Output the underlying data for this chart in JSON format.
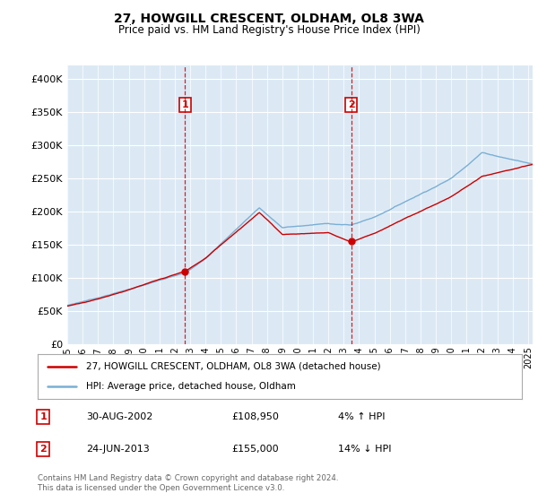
{
  "title": "27, HOWGILL CRESCENT, OLDHAM, OL8 3WA",
  "subtitle": "Price paid vs. HM Land Registry's House Price Index (HPI)",
  "plot_bg_color": "#dce9f5",
  "ylim": [
    0,
    420000
  ],
  "yticks": [
    0,
    50000,
    100000,
    150000,
    200000,
    250000,
    300000,
    350000,
    400000
  ],
  "ytick_labels": [
    "£0",
    "£50K",
    "£100K",
    "£150K",
    "£200K",
    "£250K",
    "£300K",
    "£350K",
    "£400K"
  ],
  "sale1": {
    "date_num": 2002.66,
    "price": 108950,
    "label": "1",
    "date_str": "30-AUG-2002",
    "hpi_pct": "4% ↑ HPI"
  },
  "sale2": {
    "date_num": 2013.48,
    "price": 155000,
    "label": "2",
    "date_str": "24-JUN-2013",
    "hpi_pct": "14% ↓ HPI"
  },
  "legend_red": "27, HOWGILL CRESCENT, OLDHAM, OL8 3WA (detached house)",
  "legend_blue": "HPI: Average price, detached house, Oldham",
  "footer": "Contains HM Land Registry data © Crown copyright and database right 2024.\nThis data is licensed under the Open Government Licence v3.0.",
  "red_color": "#cc0000",
  "blue_color": "#7aafd4",
  "xtick_years": [
    1995,
    1996,
    1997,
    1998,
    1999,
    2000,
    2001,
    2002,
    2003,
    2004,
    2005,
    2006,
    2007,
    2008,
    2009,
    2010,
    2011,
    2012,
    2013,
    2014,
    2015,
    2016,
    2017,
    2018,
    2019,
    2020,
    2021,
    2022,
    2023,
    2024,
    2025
  ],
  "xlim": [
    1995,
    2025.3
  ]
}
